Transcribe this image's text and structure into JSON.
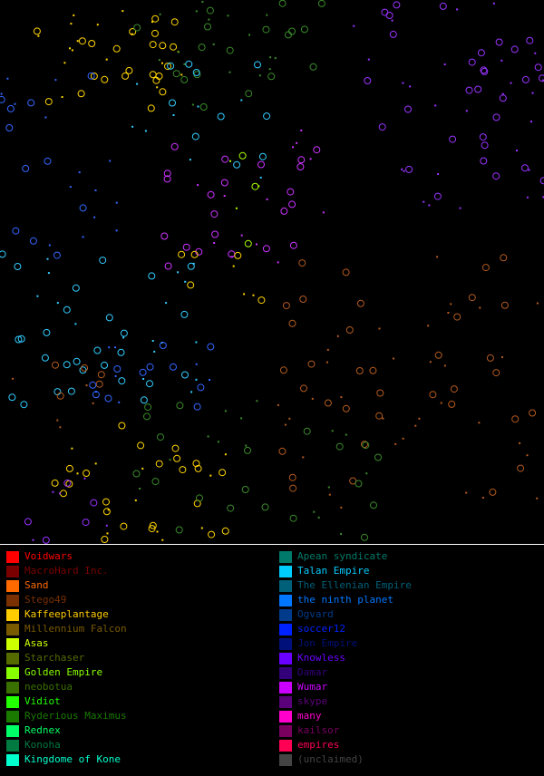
{
  "map": {
    "colors": {
      "yellow": "#ffd400",
      "green": "#3a8a2a",
      "lime": "#aaff00",
      "cyan": "#33ccff",
      "blue": "#3366ff",
      "purple": "#9933ff",
      "magenta": "#cc33ff",
      "orange": "#b35a1f",
      "teal": "#208060",
      "pink": "#ff3366"
    }
  },
  "legend": {
    "left": [
      {
        "label": "Voidwars",
        "color": "#ff0000"
      },
      {
        "label": "MacroHard Inc.",
        "color": "#7a0000"
      },
      {
        "label": "Sand",
        "color": "#ff6a00"
      },
      {
        "label": "Stego49",
        "color": "#7a3000"
      },
      {
        "label": "Kaffeeplantage",
        "color": "#ffcc00"
      },
      {
        "label": "Millennium Falcon",
        "color": "#7a5a00"
      },
      {
        "label": "Asas",
        "color": "#ccff00"
      },
      {
        "label": "Starchaser",
        "color": "#556b00"
      },
      {
        "label": "Golden Empire",
        "color": "#88ff00"
      },
      {
        "label": "neobotua",
        "color": "#3a7000"
      },
      {
        "label": "Vidiot",
        "color": "#22ff00"
      },
      {
        "label": "Ryderious Maximus",
        "color": "#1a7a00"
      },
      {
        "label": "Rednex",
        "color": "#00ff66"
      },
      {
        "label": "Konoha",
        "color": "#007a40"
      },
      {
        "label": "Kingdome of Kone",
        "color": "#00ffcc"
      }
    ],
    "right": [
      {
        "label": "Apean syndicate",
        "color": "#007a6a"
      },
      {
        "label": "Talan Empire",
        "color": "#00ccff"
      },
      {
        "label": "The Ellenian Empire",
        "color": "#00607a"
      },
      {
        "label": "the ninth planet",
        "color": "#0077ff"
      },
      {
        "label": "Ogvard",
        "color": "#003a8a"
      },
      {
        "label": "soccer12",
        "color": "#0022ff"
      },
      {
        "label": "Jon Empire",
        "color": "#00107a"
      },
      {
        "label": "Knowless",
        "color": "#6a00ff"
      },
      {
        "label": "Damar",
        "color": "#33007a"
      },
      {
        "label": "Wumar",
        "color": "#cc00ff"
      },
      {
        "label": "skype",
        "color": "#5a007a"
      },
      {
        "label": "many",
        "color": "#ff00cc"
      },
      {
        "label": "kailsor",
        "color": "#7a0060"
      },
      {
        "label": "empires",
        "color": "#ff0055"
      },
      {
        "label": "(unclaimed)",
        "color": "#444444"
      }
    ]
  }
}
